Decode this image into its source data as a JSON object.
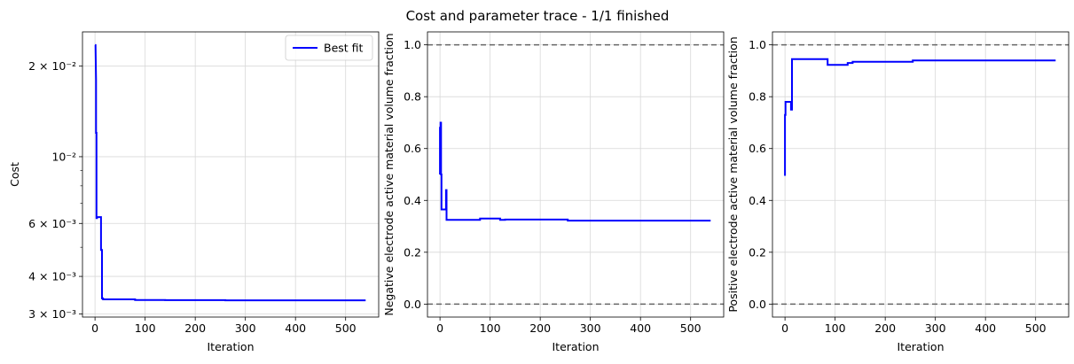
{
  "figure": {
    "title": "Cost and parameter trace - 1/1 finished"
  },
  "colors": {
    "series": "#0000ff",
    "reference": "#666666",
    "grid": "#d8d8d8",
    "axes": "#000000"
  },
  "chart_data": [
    {
      "type": "line",
      "ylabel": "Cost",
      "xlabel": "Iteration",
      "yscale": "log",
      "xlim": [
        -25,
        566
      ],
      "ylim": [
        0.00293,
        0.026
      ],
      "grid": true,
      "legend_position": "top-right",
      "legend": [
        "Best fit"
      ],
      "xticks": [
        0,
        100,
        200,
        300,
        400,
        500
      ],
      "xtick_labels": [
        "0",
        "100",
        "200",
        "300",
        "400",
        "500"
      ],
      "yticks": [
        0.003,
        0.004,
        0.006,
        0.01,
        0.02
      ],
      "ytick_labels": [
        "3 × 10⁻³",
        "4 × 10⁻³",
        "6 × 10⁻³",
        "10⁻²",
        "2 × 10⁻²"
      ],
      "series": [
        {
          "name": "Best fit",
          "x": [
            0,
            1,
            2,
            2,
            3,
            3,
            4,
            4,
            10,
            12,
            12,
            14,
            14,
            16,
            16,
            80,
            80,
            140,
            140,
            260,
            260,
            540
          ],
          "y": [
            0.0235,
            0.0235,
            0.018,
            0.012,
            0.012,
            0.00625,
            0.00625,
            0.0063,
            0.0063,
            0.0063,
            0.0049,
            0.0049,
            0.00338,
            0.00338,
            0.003355,
            0.003355,
            0.00334,
            0.00334,
            0.003335,
            0.003335,
            0.00333,
            0.00333
          ]
        }
      ]
    },
    {
      "type": "line",
      "ylabel": "Negative electrode active material volume fraction",
      "xlabel": "Iteration",
      "xlim": [
        -25,
        566
      ],
      "ylim": [
        -0.05,
        1.05
      ],
      "grid": true,
      "reference_lines": [
        0.0,
        1.0
      ],
      "xticks": [
        0,
        100,
        200,
        300,
        400,
        500
      ],
      "xtick_labels": [
        "0",
        "100",
        "200",
        "300",
        "400",
        "500"
      ],
      "yticks": [
        0.0,
        0.2,
        0.4,
        0.6,
        0.8,
        1.0
      ],
      "ytick_labels": [
        "0.0",
        "0.2",
        "0.4",
        "0.6",
        "0.8",
        "1.0"
      ],
      "series": [
        {
          "x": [
            0,
            0,
            1,
            1,
            2,
            2,
            3,
            3,
            9,
            9,
            12,
            12,
            13,
            13,
            15,
            15,
            80,
            80,
            120,
            120,
            130,
            130,
            255,
            255,
            540
          ],
          "y": [
            0.5,
            0.68,
            0.68,
            0.7,
            0.7,
            0.5,
            0.5,
            0.365,
            0.365,
            0.365,
            0.365,
            0.44,
            0.44,
            0.325,
            0.325,
            0.325,
            0.325,
            0.33,
            0.33,
            0.325,
            0.325,
            0.326,
            0.326,
            0.322,
            0.322
          ]
        }
      ]
    },
    {
      "type": "line",
      "ylabel": "Positive electrode active material volume fraction",
      "xlabel": "Iteration",
      "xlim": [
        -25,
        566
      ],
      "ylim": [
        -0.05,
        1.05
      ],
      "grid": true,
      "reference_lines": [
        0.0,
        1.0
      ],
      "xticks": [
        0,
        100,
        200,
        300,
        400,
        500
      ],
      "xtick_labels": [
        "0",
        "100",
        "200",
        "300",
        "400",
        "500"
      ],
      "yticks": [
        0.0,
        0.2,
        0.4,
        0.6,
        0.8,
        1.0
      ],
      "ytick_labels": [
        "0.0",
        "0.2",
        "0.4",
        "0.6",
        "0.8",
        "1.0"
      ],
      "series": [
        {
          "x": [
            0,
            0,
            1,
            1,
            12,
            12,
            14,
            14,
            16,
            16,
            85,
            85,
            125,
            125,
            135,
            135,
            255,
            255,
            540
          ],
          "y": [
            0.495,
            0.73,
            0.73,
            0.78,
            0.78,
            0.75,
            0.75,
            0.945,
            0.945,
            0.945,
            0.945,
            0.923,
            0.923,
            0.93,
            0.93,
            0.935,
            0.935,
            0.94,
            0.94
          ]
        }
      ]
    }
  ]
}
